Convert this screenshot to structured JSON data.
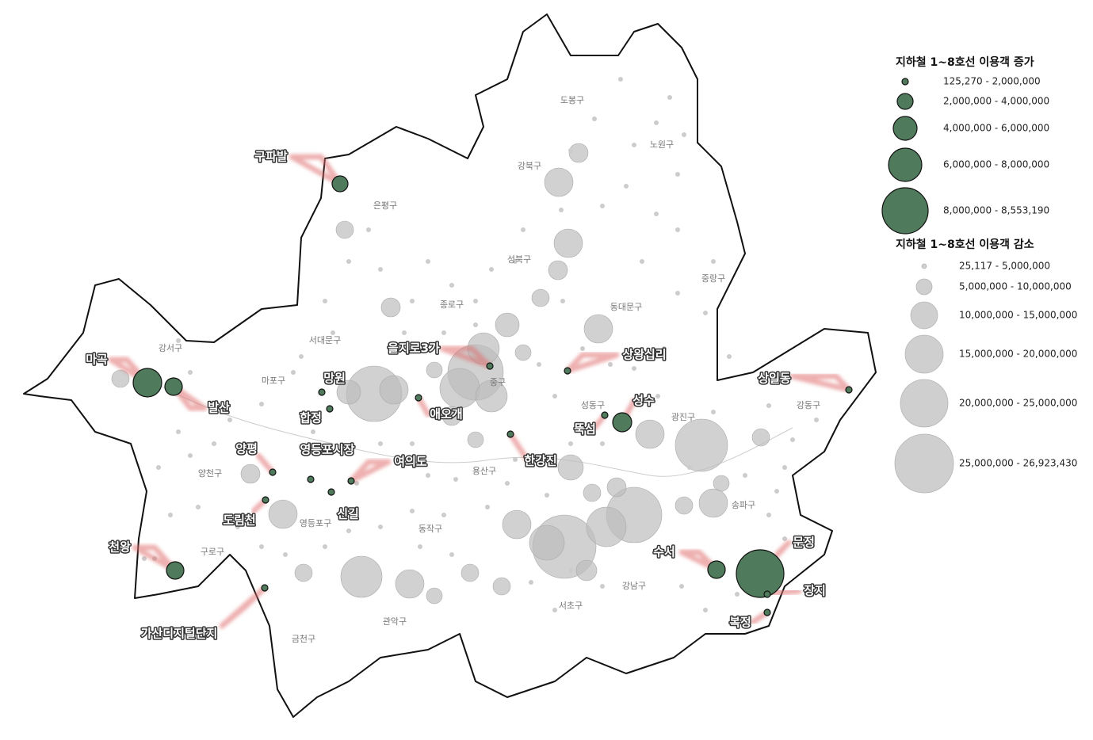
{
  "legend": {
    "increase": {
      "title": "지하철 1~8호선 이용객 증가",
      "items": [
        "125,270 - 2,000,000",
        "2,000,000 - 4,000,000",
        "4,000,000 - 6,000,000",
        "6,000,000 - 8,000,000",
        "8,000,000 - 8,553,190"
      ]
    },
    "decrease": {
      "title": "지하철 1~8호선 이용객 감소",
      "items": [
        "25,117 - 5,000,000",
        "5,000,000 - 10,000,000",
        "10,000,000 - 15,000,000",
        "15,000,000 - 20,000,000",
        "20,000,000 - 25,000,000",
        "25,000,000 - 26,923,430"
      ]
    }
  },
  "districts": [
    "도봉구",
    "노원구",
    "강북구",
    "은평구",
    "성북구",
    "중랑구",
    "종로구",
    "동대문구",
    "서대문구",
    "강서구",
    "마포구",
    "중구",
    "성동구",
    "광진구",
    "강동구",
    "양천구",
    "용산구",
    "송파구",
    "영등포구",
    "구로구",
    "동작구",
    "강남구",
    "서초구",
    "관악구",
    "금천구"
  ],
  "stations": [
    "구파발",
    "마곡",
    "발산",
    "망원",
    "합정",
    "을지로3가",
    "애오개",
    "상왕십리",
    "성수",
    "뚝섬",
    "상일동",
    "양평",
    "영등포시장",
    "여의도",
    "한강진",
    "신길",
    "도림천",
    "천왕",
    "가산디지털단지",
    "수서",
    "문정",
    "장지",
    "복정"
  ]
}
